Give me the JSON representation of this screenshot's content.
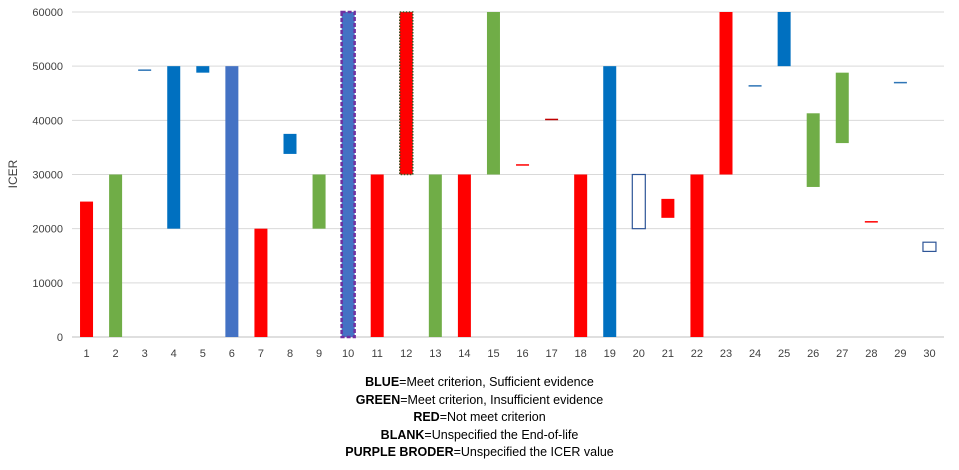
{
  "chart_data": {
    "type": "bar",
    "subtype": "floating-range",
    "ylabel": "ICER",
    "xlabel": "",
    "ylim": [
      0,
      60000
    ],
    "yticks": [
      0,
      10000,
      20000,
      30000,
      40000,
      50000,
      60000
    ],
    "ytick_labels": [
      "0",
      "10000",
      "20000",
      "30000",
      "40000",
      "50000",
      "60000"
    ],
    "grid": true,
    "categories": [
      "1",
      "2",
      "3",
      "4",
      "5",
      "6",
      "7",
      "8",
      "9",
      "10",
      "11",
      "12",
      "13",
      "14",
      "15",
      "16",
      "17",
      "18",
      "19",
      "20",
      "21",
      "22",
      "23",
      "24",
      "25",
      "26",
      "27",
      "28",
      "29",
      "30"
    ],
    "bars": [
      {
        "x": "1",
        "low": 0,
        "high": 25000,
        "color": "#ff0000",
        "style": "filled"
      },
      {
        "x": "2",
        "low": 0,
        "high": 30000,
        "color": "#70ad47",
        "style": "filled"
      },
      {
        "x": "3",
        "low": 49200,
        "high": 49400,
        "color": "#2e75b6",
        "style": "filled"
      },
      {
        "x": "4",
        "low": 20000,
        "high": 50000,
        "color": "#0070c0",
        "style": "filled"
      },
      {
        "x": "5",
        "low": 48800,
        "high": 50000,
        "color": "#0070c0",
        "style": "filled"
      },
      {
        "x": "6",
        "low": 0,
        "high": 50000,
        "color": "#4472c4",
        "style": "filled"
      },
      {
        "x": "7",
        "low": 0,
        "high": 20000,
        "color": "#ff0000",
        "style": "filled"
      },
      {
        "x": "8",
        "low": 33800,
        "high": 37500,
        "color": "#0070c0",
        "style": "filled"
      },
      {
        "x": "9",
        "low": 20000,
        "high": 30000,
        "color": "#70ad47",
        "style": "filled"
      },
      {
        "x": "10",
        "low": 0,
        "high": 60000,
        "color": "#4472c4",
        "style": "purple-border"
      },
      {
        "x": "11",
        "low": 0,
        "high": 30000,
        "color": "#ff0000",
        "style": "filled"
      },
      {
        "x": "12",
        "low": 30000,
        "high": 60000,
        "color": "#ff0000",
        "style": "dotted-border"
      },
      {
        "x": "13",
        "low": 0,
        "high": 30000,
        "color": "#70ad47",
        "style": "filled"
      },
      {
        "x": "14",
        "low": 0,
        "high": 30000,
        "color": "#ff0000",
        "style": "filled"
      },
      {
        "x": "15",
        "low": 30000,
        "high": 60000,
        "color": "#70ad47",
        "style": "filled"
      },
      {
        "x": "16",
        "low": 31700,
        "high": 31900,
        "color": "#ff0000",
        "style": "filled"
      },
      {
        "x": "17",
        "low": 40100,
        "high": 40300,
        "color": "#c00000",
        "style": "filled"
      },
      {
        "x": "18",
        "low": 0,
        "high": 30000,
        "color": "#ff0000",
        "style": "filled"
      },
      {
        "x": "19",
        "low": 0,
        "high": 50000,
        "color": "#0070c0",
        "style": "filled"
      },
      {
        "x": "20",
        "low": 20000,
        "high": 30000,
        "color": "#2e5597",
        "style": "blank"
      },
      {
        "x": "21",
        "low": 22000,
        "high": 25500,
        "color": "#ff0000",
        "style": "filled"
      },
      {
        "x": "22",
        "low": 0,
        "high": 30000,
        "color": "#ff0000",
        "style": "filled"
      },
      {
        "x": "23",
        "low": 30000,
        "high": 60000,
        "color": "#ff0000",
        "style": "filled"
      },
      {
        "x": "24",
        "low": 46300,
        "high": 46500,
        "color": "#2e75b6",
        "style": "filled"
      },
      {
        "x": "25",
        "low": 50000,
        "high": 60000,
        "color": "#0070c0",
        "style": "filled"
      },
      {
        "x": "26",
        "low": 27700,
        "high": 41300,
        "color": "#70ad47",
        "style": "filled"
      },
      {
        "x": "27",
        "low": 35800,
        "high": 48800,
        "color": "#70ad47",
        "style": "filled"
      },
      {
        "x": "28",
        "low": 21200,
        "high": 21400,
        "color": "#ff0000",
        "style": "filled"
      },
      {
        "x": "29",
        "low": 46900,
        "high": 47100,
        "color": "#2e75b6",
        "style": "filled"
      },
      {
        "x": "30",
        "low": 15800,
        "high": 17500,
        "color": "#2e5597",
        "style": "blank"
      }
    ]
  },
  "legend": [
    {
      "key": "BLUE",
      "text": "=Meet criterion, Sufficient evidence"
    },
    {
      "key": "GREEN",
      "text": "=Meet criterion, Insufficient evidence"
    },
    {
      "key": "RED",
      "text": "=Not meet criterion"
    },
    {
      "key": "BLANK",
      "text": "=Unspecified the End-of-life"
    },
    {
      "key": "PURPLE BRODER",
      "text": "=Unspecified the ICER value"
    }
  ]
}
